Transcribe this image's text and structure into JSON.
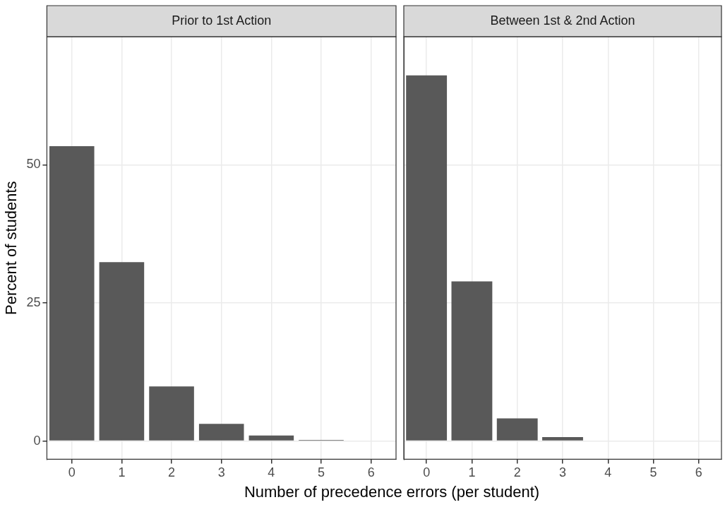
{
  "chart_data": [
    {
      "type": "bar",
      "title": "Prior to 1st Action",
      "xlabel": "Number of precedence errors (per student)",
      "ylabel": "Percent of students",
      "categories": [
        "0",
        "1",
        "2",
        "3",
        "4",
        "5",
        "6"
      ],
      "values": [
        53.4,
        32.4,
        9.9,
        3.1,
        1.0,
        0.2,
        0
      ],
      "color": "#595959",
      "ylim": [
        -3.3,
        73.2
      ],
      "yticks": [
        0,
        25,
        50
      ],
      "grid": true
    },
    {
      "type": "bar",
      "title": "Between 1st & 2nd Action",
      "categories": [
        "0",
        "1",
        "2",
        "3",
        "4",
        "5",
        "6"
      ],
      "values": [
        66.2,
        28.9,
        4.1,
        0.7,
        0,
        0,
        0
      ],
      "color": "#595959",
      "ylim": [
        -3.3,
        73.2
      ],
      "yticks": [
        0,
        25,
        50
      ],
      "grid": true,
      "tick_labels": "x"
    }
  ]
}
